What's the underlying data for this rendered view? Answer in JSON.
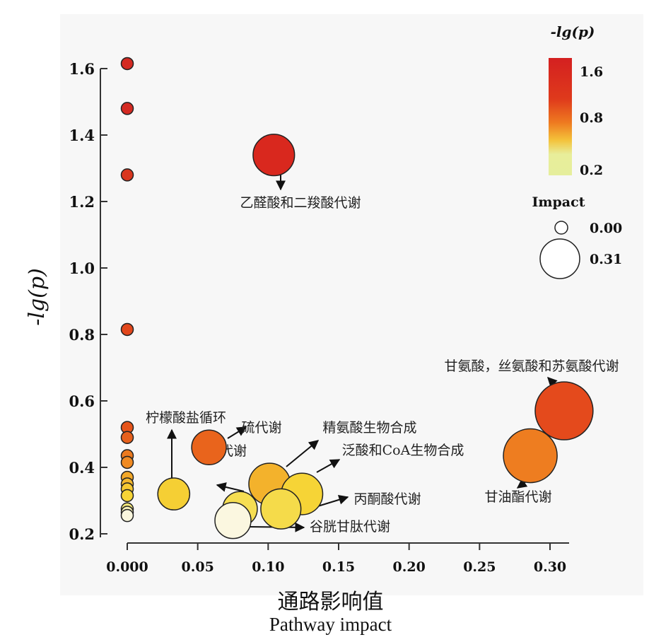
{
  "chart_data": {
    "type": "scatter",
    "ylabel": "-lg(p)",
    "xlabel_cn": "通路影响值",
    "xlabel_en": "Pathway impact",
    "xlim": [
      -0.005,
      0.32
    ],
    "ylim": [
      0.2,
      1.65
    ],
    "x_ticks": [
      "0.000",
      "0.05",
      "0.10",
      "0.15",
      "0.20",
      "0.25",
      "0.30"
    ],
    "x_tick_values": [
      0,
      0.05,
      0.1,
      0.15,
      0.2,
      0.25,
      0.3
    ],
    "y_ticks": [
      "0.2",
      "0.4",
      "0.6",
      "0.8",
      "1.0",
      "1.2",
      "1.4",
      "1.6"
    ],
    "y_tick_values": [
      0.2,
      0.4,
      0.6,
      0.8,
      1.0,
      1.2,
      1.4,
      1.6
    ],
    "color_legend": {
      "title": "-lg(p)",
      "labels": [
        "1.6",
        "0.8",
        "0.2"
      ],
      "colors": [
        "#d42020",
        "#e8501a",
        "#f09a22",
        "#f4d23a",
        "#e8ee9a"
      ]
    },
    "size_legend": {
      "title": "Impact",
      "labels": [
        "0.00",
        "0.31"
      ],
      "values": [
        0.0,
        0.31
      ]
    },
    "points": [
      {
        "x": 0.0,
        "y": 1.615,
        "impact": 0.0,
        "color": "#d42a22"
      },
      {
        "x": 0.0,
        "y": 1.48,
        "impact": 0.0,
        "color": "#d42a22"
      },
      {
        "x": 0.0,
        "y": 1.28,
        "impact": 0.0,
        "color": "#d9361e"
      },
      {
        "x": 0.0,
        "y": 0.815,
        "impact": 0.0,
        "color": "#e2471c"
      },
      {
        "x": 0.0,
        "y": 0.52,
        "impact": 0.0,
        "color": "#e6541a"
      },
      {
        "x": 0.0,
        "y": 0.49,
        "impact": 0.0,
        "color": "#e6601c"
      },
      {
        "x": 0.0,
        "y": 0.435,
        "impact": 0.0,
        "color": "#ec7a1e"
      },
      {
        "x": 0.0,
        "y": 0.415,
        "impact": 0.0,
        "color": "#f08a22"
      },
      {
        "x": 0.0,
        "y": 0.37,
        "impact": 0.0,
        "color": "#f3a828"
      },
      {
        "x": 0.0,
        "y": 0.35,
        "impact": 0.0,
        "color": "#f4b82e"
      },
      {
        "x": 0.0,
        "y": 0.335,
        "impact": 0.0,
        "color": "#f6c832"
      },
      {
        "x": 0.0,
        "y": 0.315,
        "impact": 0.0,
        "color": "#f6d436"
      },
      {
        "x": 0.0,
        "y": 0.275,
        "impact": 0.0,
        "color": "#f4e87a"
      },
      {
        "x": 0.0,
        "y": 0.265,
        "impact": 0.0,
        "color": "#f6f0b8"
      },
      {
        "x": 0.0,
        "y": 0.255,
        "impact": 0.0,
        "color": "#faf7de"
      },
      {
        "x": 0.104,
        "y": 1.34,
        "impact": 0.19,
        "color": "#d9281e"
      },
      {
        "x": 0.31,
        "y": 0.57,
        "impact": 0.31,
        "color": "#e44a1c"
      },
      {
        "x": 0.286,
        "y": 0.435,
        "impact": 0.28,
        "color": "#ee7d20"
      },
      {
        "x": 0.058,
        "y": 0.46,
        "impact": 0.14,
        "color": "#e9641c"
      },
      {
        "x": 0.033,
        "y": 0.32,
        "impact": 0.12,
        "color": "#f5cf34"
      },
      {
        "x": 0.101,
        "y": 0.35,
        "impact": 0.19,
        "color": "#f3b22c"
      },
      {
        "x": 0.124,
        "y": 0.32,
        "impact": 0.19,
        "color": "#f6d436"
      },
      {
        "x": 0.08,
        "y": 0.275,
        "impact": 0.14,
        "color": "#f6de52"
      },
      {
        "x": 0.109,
        "y": 0.275,
        "impact": 0.18,
        "color": "#f5db4a"
      },
      {
        "x": 0.075,
        "y": 0.24,
        "impact": 0.15,
        "color": "#fbf7e0"
      }
    ],
    "annotations": [
      {
        "text": "乙醛酸和二羧酸代谢"
      },
      {
        "text": "甘氨酸，丝氨酸和苏氨酸代谢"
      },
      {
        "text": "甘油酯代谢"
      },
      {
        "text": "柠檬酸盐循环"
      },
      {
        "text": "硫代谢"
      },
      {
        "text": "精氨酸生物合成"
      },
      {
        "text": "泛酸和CoA生物合成"
      },
      {
        "text": "甲烷代谢"
      },
      {
        "text": "丙酮酸代谢"
      },
      {
        "text": "谷胱甘肽代谢"
      }
    ]
  }
}
